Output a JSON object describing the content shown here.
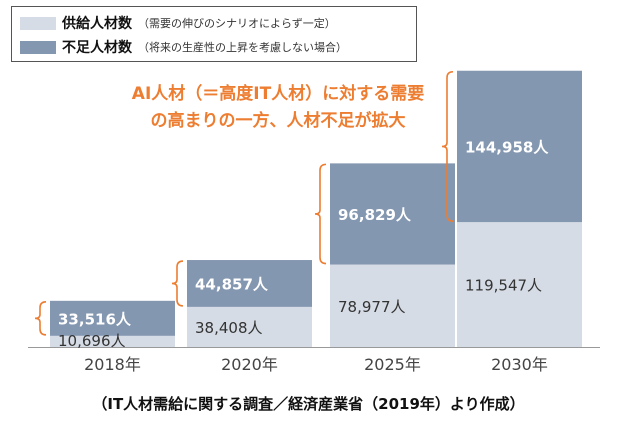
{
  "legend": {
    "supply": {
      "name": "供給人材数",
      "note": "（需要の伸びのシナリオによらず一定）",
      "color": "#D6DCE5"
    },
    "shortage": {
      "name": "不足人材数",
      "note": "（将来の生産性の上昇を考慮しない場合）",
      "color": "#8497B0"
    }
  },
  "callout": {
    "line1": "AI人材（＝高度IT人材）に対する需要",
    "line2": "の高まりの一方、人材不足が拡大",
    "color": "#ED7D31"
  },
  "source": "（IT人材需給に関する調査／経済産業省（2019年）より作成）",
  "chart_data": {
    "type": "bar",
    "stacked": true,
    "categories": [
      "2018年",
      "2020年",
      "2025年",
      "2030年"
    ],
    "series": [
      {
        "name": "供給人材数",
        "values": [
          10696,
          38408,
          78977,
          119547
        ],
        "labels": [
          "10,696人",
          "38,408人",
          "78,977人",
          "119,547人"
        ],
        "color": "#D6DCE5"
      },
      {
        "name": "不足人材数",
        "values": [
          33516,
          44857,
          96829,
          144958
        ],
        "labels": [
          "33,516人",
          "44,857人",
          "96,829人",
          "144,958人"
        ],
        "color": "#8497B0"
      }
    ],
    "ylim": [
      0,
      270000
    ],
    "grid": false,
    "legend_position": "top-left"
  }
}
